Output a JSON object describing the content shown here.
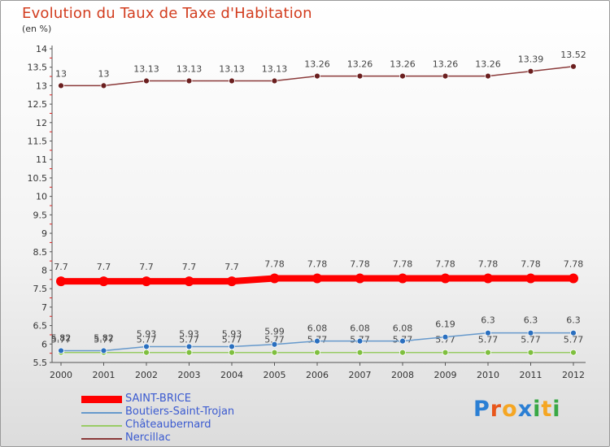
{
  "header": {
    "title": "Evolution du Taux de Taxe d'Habitation",
    "unit": "(en %)"
  },
  "logo": {
    "text": "Proxiti",
    "colors": [
      "#2b7fd4",
      "#e8561b",
      "#f5a623",
      "#2b7fd4",
      "#39a845",
      "#f5a623",
      "#39a845"
    ]
  },
  "chart_data": {
    "type": "line",
    "title": "Evolution du Taux de Taxe d'Habitation",
    "ylabel": "(en %)",
    "xlabel": "",
    "x": [
      "2000",
      "2001",
      "2002",
      "2003",
      "2004",
      "2005",
      "2006",
      "2007",
      "2008",
      "2009",
      "2010",
      "2011",
      "2012"
    ],
    "yticks": [
      "5.5",
      "6",
      "6.5",
      "7",
      "7.5",
      "8",
      "8.5",
      "9",
      "9.5",
      "10",
      "10.5",
      "11",
      "11.5",
      "12",
      "12.5",
      "13",
      "13.5",
      "14"
    ],
    "ylim": [
      5.5,
      14
    ],
    "grid": false,
    "legend": "bottom-left",
    "series": [
      {
        "name": "SAINT-BRICE",
        "color": "#ff0000",
        "values": [
          7.7,
          7.7,
          7.7,
          7.7,
          7.7,
          7.78,
          7.78,
          7.78,
          7.78,
          7.78,
          7.78,
          7.78,
          7.78
        ],
        "labels": [
          "7.7",
          "7.7",
          "7.7",
          "7.7",
          "7.7",
          "7.78",
          "7.78",
          "7.78",
          "7.78",
          "7.78",
          "7.78",
          "7.78",
          "7.78"
        ]
      },
      {
        "name": "Boutiers-Saint-Trojan",
        "color": "#6699cc",
        "values": [
          5.82,
          5.82,
          5.93,
          5.93,
          5.93,
          5.99,
          6.08,
          6.08,
          6.08,
          6.19,
          6.3,
          6.3,
          6.3
        ],
        "labels": [
          "5.82",
          "5.82",
          "5.93",
          "5.93",
          "5.93",
          "5.99",
          "6.08",
          "6.08",
          "6.08",
          "6.19",
          "6.3",
          "6.3",
          "6.3"
        ]
      },
      {
        "name": "Châteaubernard",
        "color": "#99cc66",
        "values": [
          5.77,
          5.77,
          5.77,
          5.77,
          5.77,
          5.77,
          5.77,
          5.77,
          5.77,
          5.77,
          5.77,
          5.77,
          5.77
        ],
        "labels": [
          "5.77",
          "5.77",
          "5.77",
          "5.77",
          "5.77",
          "5.77",
          "5.77",
          "5.77",
          "5.77",
          "5.77",
          "5.77",
          "5.77",
          "5.77"
        ]
      },
      {
        "name": "Nercillac",
        "color": "#8b3a3a",
        "values": [
          13,
          13,
          13.13,
          13.13,
          13.13,
          13.13,
          13.26,
          13.26,
          13.26,
          13.26,
          13.26,
          13.39,
          13.52
        ],
        "labels": [
          "13",
          "13",
          "13.13",
          "13.13",
          "13.13",
          "13.13",
          "13.26",
          "13.26",
          "13.26",
          "13.26",
          "13.26",
          "13.39",
          "13.52"
        ]
      }
    ]
  }
}
